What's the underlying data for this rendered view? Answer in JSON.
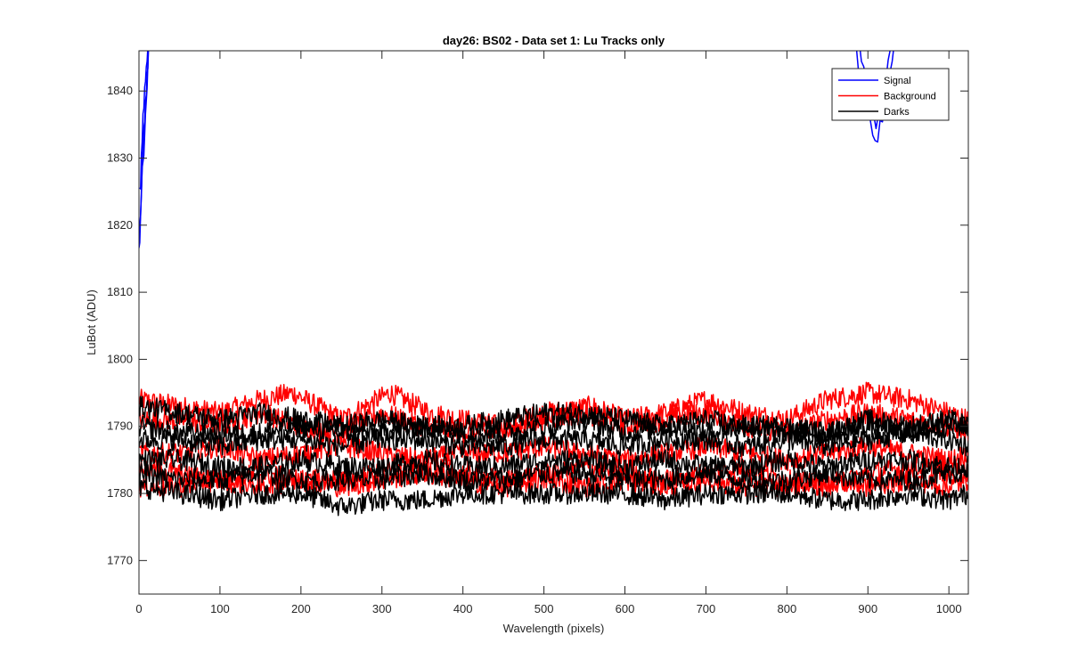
{
  "chart_data": {
    "type": "line",
    "title": "day26: BS02 - Data set 1: Lu Tracks only",
    "xlabel": "Wavelength (pixels)",
    "ylabel": "LuBot (ADU)",
    "xlim": [
      0,
      1024
    ],
    "ylim": [
      1765,
      1846
    ],
    "x_ticks": [
      0,
      100,
      200,
      300,
      400,
      500,
      600,
      700,
      800,
      900,
      1000
    ],
    "y_ticks": [
      1770,
      1780,
      1790,
      1800,
      1810,
      1820,
      1830,
      1840
    ],
    "grid": false,
    "legend_position": "top-right",
    "series": [
      {
        "name": "Signal",
        "color": "#0000ff",
        "traces": [
          {
            "x": [
              0,
              1,
              2,
              3,
              4,
              5,
              6,
              7,
              8,
              9,
              10,
              11,
              12
            ],
            "y": [
              1816,
              1818,
              1821,
              1825,
              1828,
              1832,
              1834,
              1836,
              1838,
              1840,
              1842,
              1844,
              1847
            ]
          },
          {
            "x": [
              1,
              2,
              3,
              4,
              5,
              6,
              7,
              8,
              9,
              10,
              11,
              12
            ],
            "y": [
              1825,
              1826,
              1830,
              1833,
              1836,
              1838,
              1840,
              1842,
              1843,
              1845,
              1846,
              1848
            ]
          },
          {
            "x": [
              0,
              2,
              4,
              6,
              8,
              10,
              12
            ],
            "y": [
              1818,
              1822,
              1828,
              1831,
              1836,
              1841,
              1847
            ]
          },
          {
            "x": [
              885,
              888,
              891,
              894,
              897,
              900,
              903,
              906,
              909,
              912,
              915,
              918,
              921,
              924,
              927,
              930,
              933
            ],
            "y": [
              1847,
              1844,
              1842,
              1840,
              1839,
              1837,
              1835,
              1834,
              1832,
              1833,
              1835,
              1836,
              1838,
              1840,
              1842,
              1845,
              1847
            ]
          },
          {
            "x": [
              889,
              892,
              895,
              898,
              901,
              904,
              907,
              910,
              913,
              916,
              919,
              922,
              925,
              928
            ],
            "y": [
              1847,
              1845,
              1843,
              1841,
              1840,
              1838,
              1836,
              1835,
              1836,
              1838,
              1840,
              1842,
              1844,
              1847
            ]
          }
        ]
      },
      {
        "name": "Background",
        "color": "#ff0000",
        "traces": [
          {
            "x": [
              0,
              50,
              100,
              150,
              190,
              250,
              310,
              360,
              400,
              450,
              500,
              560,
              600,
              650,
              700,
              750,
              800,
              850,
              900,
              950,
              1000,
              1024
            ],
            "y": [
              1794,
              1793,
              1792,
              1794,
              1795,
              1791,
              1795,
              1792,
              1791,
              1790,
              1792,
              1793,
              1791,
              1792,
              1794,
              1792,
              1791,
              1794,
              1795,
              1794,
              1792,
              1791
            ]
          },
          {
            "x": [
              0,
              50,
              100,
              150,
              200,
              250,
              300,
              350,
              400,
              450,
              500,
              550,
              600,
              650,
              700,
              750,
              800,
              850,
              900,
              950,
              1000,
              1024
            ],
            "y": [
              1791,
              1791,
              1790,
              1792,
              1790,
              1789,
              1792,
              1790,
              1789,
              1789,
              1791,
              1792,
              1790,
              1791,
              1792,
              1790,
              1789,
              1791,
              1792,
              1791,
              1790,
              1789
            ]
          },
          {
            "x": [
              0,
              50,
              100,
              150,
              200,
              250,
              300,
              350,
              400,
              450,
              500,
              550,
              600,
              650,
              700,
              750,
              800,
              850,
              900,
              950,
              1000,
              1024
            ],
            "y": [
              1786,
              1786,
              1787,
              1785,
              1786,
              1787,
              1786,
              1785,
              1786,
              1786,
              1787,
              1786,
              1785,
              1786,
              1787,
              1786,
              1785,
              1786,
              1787,
              1786,
              1785,
              1786
            ]
          },
          {
            "x": [
              0,
              50,
              100,
              150,
              200,
              250,
              300,
              350,
              400,
              450,
              500,
              550,
              600,
              650,
              700,
              750,
              800,
              850,
              900,
              950,
              1000,
              1024
            ],
            "y": [
              1784,
              1783,
              1782,
              1783,
              1782,
              1782,
              1783,
              1784,
              1783,
              1782,
              1783,
              1784,
              1783,
              1782,
              1783,
              1784,
              1782,
              1781,
              1783,
              1784,
              1783,
              1783
            ]
          },
          {
            "x": [
              0,
              50,
              100,
              150,
              200,
              250,
              300,
              350,
              400,
              450,
              500,
              550,
              600,
              650,
              700,
              750,
              800,
              850,
              900,
              950,
              1000,
              1024
            ],
            "y": [
              1781,
              1781,
              1782,
              1781,
              1782,
              1781,
              1782,
              1783,
              1782,
              1781,
              1782,
              1781,
              1782,
              1781,
              1782,
              1781,
              1781,
              1782,
              1781,
              1782,
              1781,
              1782
            ]
          }
        ]
      },
      {
        "name": "Darks",
        "color": "#000000",
        "traces": [
          {
            "x": [
              0,
              50,
              100,
              150,
              200,
              250,
              300,
              350,
              400,
              450,
              500,
              550,
              600,
              650,
              700,
              750,
              800,
              850,
              900,
              950,
              1000,
              1024
            ],
            "y": [
              1793,
              1792,
              1791,
              1792,
              1791,
              1790,
              1791,
              1790,
              1790,
              1791,
              1792,
              1792,
              1791,
              1790,
              1791,
              1790,
              1790,
              1789,
              1791,
              1790,
              1791,
              1790
            ]
          },
          {
            "x": [
              0,
              50,
              100,
              150,
              200,
              250,
              300,
              350,
              400,
              450,
              500,
              550,
              600,
              650,
              700,
              750,
              800,
              850,
              900,
              950,
              1000,
              1024
            ],
            "y": [
              1790,
              1789,
              1789,
              1789,
              1790,
              1789,
              1789,
              1790,
              1789,
              1789,
              1790,
              1791,
              1789,
              1790,
              1789,
              1790,
              1789,
              1789,
              1790,
              1789,
              1790,
              1790
            ]
          },
          {
            "x": [
              0,
              50,
              100,
              150,
              200,
              250,
              300,
              350,
              400,
              450,
              500,
              550,
              600,
              650,
              700,
              750,
              800,
              850,
              900,
              950,
              1000,
              1024
            ],
            "y": [
              1788,
              1788,
              1787,
              1788,
              1788,
              1787,
              1788,
              1788,
              1787,
              1787,
              1788,
              1788,
              1787,
              1788,
              1788,
              1787,
              1788,
              1787,
              1788,
              1789,
              1788,
              1787
            ]
          },
          {
            "x": [
              0,
              50,
              100,
              150,
              200,
              250,
              300,
              350,
              400,
              450,
              500,
              550,
              600,
              650,
              700,
              750,
              800,
              850,
              900,
              950,
              1000,
              1024
            ],
            "y": [
              1785,
              1785,
              1784,
              1784,
              1785,
              1784,
              1784,
              1785,
              1784,
              1784,
              1785,
              1785,
              1784,
              1785,
              1784,
              1784,
              1785,
              1784,
              1785,
              1785,
              1784,
              1784
            ]
          },
          {
            "x": [
              0,
              50,
              100,
              150,
              200,
              250,
              300,
              350,
              400,
              450,
              500,
              550,
              600,
              650,
              700,
              750,
              800,
              850,
              900,
              950,
              1000,
              1024
            ],
            "y": [
              1783,
              1782,
              1782,
              1783,
              1782,
              1782,
              1782,
              1783,
              1782,
              1782,
              1783,
              1783,
              1782,
              1782,
              1783,
              1782,
              1782,
              1783,
              1782,
              1782,
              1783,
              1783
            ]
          },
          {
            "x": [
              0,
              50,
              100,
              150,
              200,
              250,
              300,
              350,
              400,
              450,
              500,
              550,
              600,
              650,
              700,
              750,
              800,
              850,
              900,
              950,
              1000,
              1024
            ],
            "y": [
              1781,
              1780,
              1779,
              1780,
              1780,
              1778,
              1779,
              1779,
              1780,
              1780,
              1780,
              1780,
              1780,
              1779,
              1780,
              1780,
              1780,
              1779,
              1779,
              1780,
              1779,
              1780
            ]
          }
        ]
      }
    ]
  }
}
